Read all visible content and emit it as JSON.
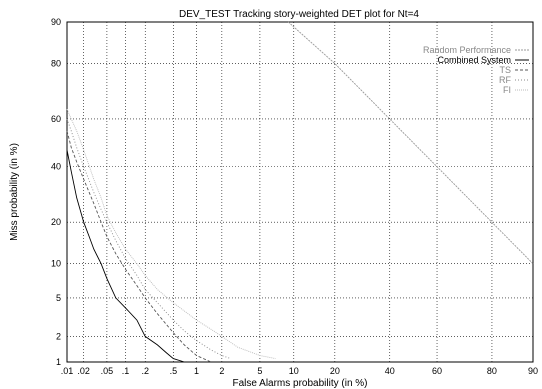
{
  "chart_data": {
    "type": "line",
    "title": "DEV_TEST Tracking story-weighted DET plot for Nt=4",
    "xlabel": "False Alarms probability (in %)",
    "ylabel": "Miss probability (in %)",
    "xscale": "probit",
    "yscale": "probit",
    "xlim": [
      0.01,
      90
    ],
    "ylim": [
      1,
      90
    ],
    "grid": true,
    "legend_position": "top-right",
    "x_ticks": [
      {
        "v": 0.01,
        "label": ".01"
      },
      {
        "v": 0.02,
        "label": ".02"
      },
      {
        "v": 0.05,
        "label": ".05"
      },
      {
        "v": 0.1,
        "label": ".1"
      },
      {
        "v": 0.2,
        "label": ".2"
      },
      {
        "v": 0.5,
        "label": ".5"
      },
      {
        "v": 1,
        "label": "1"
      },
      {
        "v": 2,
        "label": "2"
      },
      {
        "v": 5,
        "label": "5"
      },
      {
        "v": 10,
        "label": "10"
      },
      {
        "v": 20,
        "label": "20"
      },
      {
        "v": 40,
        "label": "40"
      },
      {
        "v": 60,
        "label": "60"
      },
      {
        "v": 80,
        "label": "80"
      },
      {
        "v": 90,
        "label": "90"
      }
    ],
    "y_ticks": [
      {
        "v": 1,
        "label": "1"
      },
      {
        "v": 2,
        "label": "2"
      },
      {
        "v": 5,
        "label": "5"
      },
      {
        "v": 10,
        "label": "10"
      },
      {
        "v": 20,
        "label": "20"
      },
      {
        "v": 40,
        "label": "40"
      },
      {
        "v": 60,
        "label": "60"
      },
      {
        "v": 80,
        "label": "80"
      },
      {
        "v": 90,
        "label": "90"
      }
    ],
    "series": [
      {
        "name": "Random Performance",
        "color": "#999999",
        "dash": "2,1",
        "x": [
          9,
          20,
          40,
          60,
          80,
          90
        ],
        "y": [
          90,
          80,
          60,
          40,
          20,
          10
        ]
      },
      {
        "name": "Combined System",
        "color": "#000000",
        "dash": "",
        "x": [
          0.01,
          0.012,
          0.015,
          0.02,
          0.025,
          0.03,
          0.04,
          0.05,
          0.07,
          0.1,
          0.15,
          0.2,
          0.3,
          0.4,
          0.5,
          0.7
        ],
        "y": [
          47,
          38,
          28,
          20,
          16,
          13,
          10,
          7.5,
          5,
          4,
          3,
          2,
          1.6,
          1.3,
          1.1,
          1
        ]
      },
      {
        "name": "TS",
        "color": "#555555",
        "dash": "3,2",
        "x": [
          0.01,
          0.012,
          0.015,
          0.02,
          0.03,
          0.04,
          0.05,
          0.07,
          0.1,
          0.15,
          0.2,
          0.3,
          0.5,
          0.7,
          1,
          1.5
        ],
        "y": [
          55,
          48,
          42,
          35,
          26,
          20,
          16,
          12,
          9,
          6.5,
          5,
          3.5,
          2.2,
          1.6,
          1.2,
          1
        ]
      },
      {
        "name": "RF",
        "color": "#888888",
        "dash": "1,2",
        "x": [
          0.01,
          0.012,
          0.015,
          0.02,
          0.03,
          0.04,
          0.05,
          0.07,
          0.1,
          0.15,
          0.2,
          0.3,
          0.5,
          0.7,
          1,
          1.5,
          2,
          2.5
        ],
        "y": [
          60,
          55,
          48,
          40,
          30,
          24,
          20,
          15,
          11,
          8,
          6,
          4.5,
          3,
          2.3,
          1.8,
          1.4,
          1.2,
          1.1
        ]
      },
      {
        "name": "FI",
        "color": "#bbbbbb",
        "dash": "1,1",
        "x": [
          0.01,
          0.012,
          0.015,
          0.02,
          0.03,
          0.04,
          0.05,
          0.07,
          0.1,
          0.15,
          0.2,
          0.3,
          0.5,
          1,
          1.5,
          2,
          3,
          5,
          7
        ],
        "y": [
          64,
          60,
          55,
          47,
          35,
          28,
          22,
          17,
          13,
          10,
          8,
          6,
          4.5,
          3,
          2.4,
          2,
          1.5,
          1.2,
          1.1
        ]
      }
    ]
  }
}
